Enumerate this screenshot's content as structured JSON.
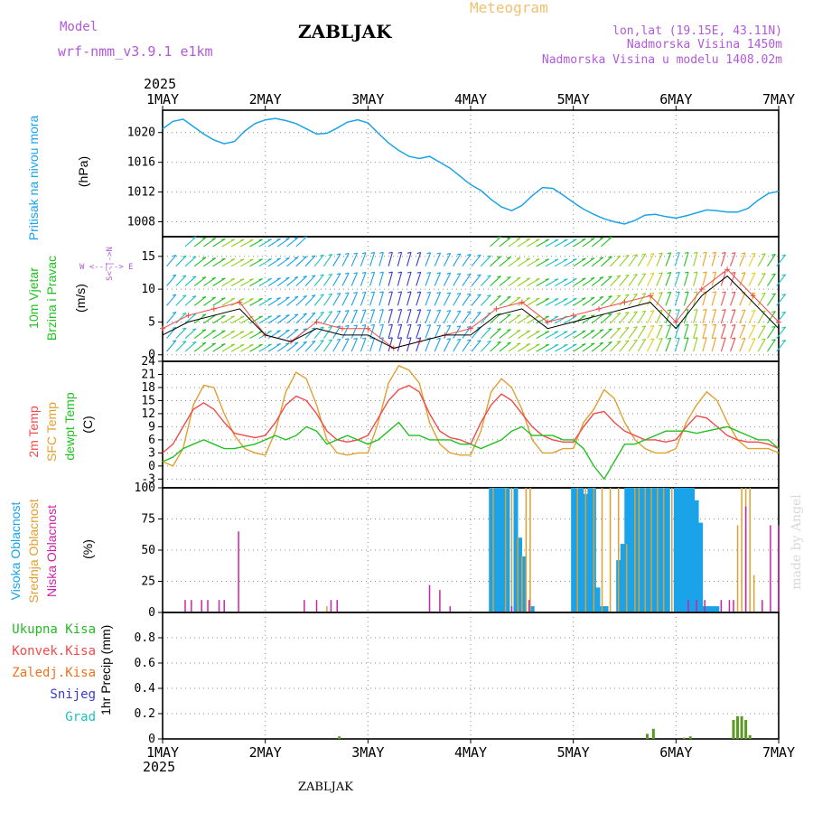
{
  "header": {
    "model_label": "Model",
    "model_name": "wrf-nmm_v3.9.1 e1km",
    "station": "ZABLJAK",
    "product": "Meteogram",
    "coords": "lon,lat (19.15E, 43.11N)",
    "elevation": "Nadmorska Visina 1450m",
    "model_elevation": "Nadmorska Visina u modelu 1408.02m",
    "watermark": "made by Angel",
    "footer_station": "ZABLJAK"
  },
  "axis": {
    "year": "2025",
    "dates": [
      "1MAY",
      "2MAY",
      "3MAY",
      "4MAY",
      "5MAY",
      "6MAY",
      "7MAY"
    ]
  },
  "colors": {
    "pressure": "#1aa3e8",
    "t2m": "#f24a4a",
    "sfc": "#e0a030",
    "dewpoint": "#22c022",
    "high_cloud": "#1aa3e8",
    "mid_cloud": "#e0a030",
    "low_cloud": "#cc22aa",
    "total_precip": "#22bb22",
    "convective": "#f24a4a",
    "frozen": "#f07020",
    "snow": "#3a3ad0",
    "hail": "#20c0c0",
    "wind_gust": "#f24a4a"
  },
  "chart_data": [
    {
      "type": "line",
      "panel": "pressure",
      "ylabel": "Pritisak na nivou mora",
      "unit": "(hPa)",
      "yticks": [
        1008,
        1012,
        1016,
        1020
      ],
      "ylim": [
        1006,
        1023
      ],
      "grid": true,
      "x": [
        0,
        0.1,
        0.2,
        0.3,
        0.4,
        0.5,
        0.6,
        0.7,
        0.8,
        0.9,
        1.0,
        1.1,
        1.2,
        1.3,
        1.4,
        1.5,
        1.6,
        1.7,
        1.8,
        1.9,
        2.0,
        2.1,
        2.2,
        2.3,
        2.4,
        2.5,
        2.6,
        2.7,
        2.8,
        2.9,
        3.0,
        3.1,
        3.2,
        3.3,
        3.4,
        3.5,
        3.6,
        3.7,
        3.8,
        3.9,
        4.0,
        4.1,
        4.2,
        4.3,
        4.4,
        4.5,
        4.6,
        4.7,
        4.8,
        4.9,
        5.0,
        5.1,
        5.2,
        5.3,
        5.4,
        5.5,
        5.6,
        5.7,
        5.8,
        5.9,
        6.0
      ],
      "series": [
        {
          "values": [
            1020.5,
            1021.5,
            1021.8,
            1020.8,
            1019.8,
            1019.0,
            1018.5,
            1018.8,
            1020.2,
            1021.2,
            1021.7,
            1021.9,
            1021.6,
            1021.2,
            1020.5,
            1019.8,
            1019.9,
            1020.6,
            1021.4,
            1021.7,
            1021.3,
            1019.9,
            1018.6,
            1017.6,
            1016.8,
            1016.5,
            1016.8,
            1016.0,
            1015.2,
            1014.1,
            1013.0,
            1012.2,
            1011.0,
            1010.0,
            1009.5,
            1010.2,
            1011.5,
            1012.6,
            1012.5,
            1011.6,
            1010.6,
            1009.7,
            1009.0,
            1008.4,
            1008.0,
            1007.7,
            1008.2,
            1008.9,
            1009.0,
            1008.7,
            1008.5,
            1008.8,
            1009.2,
            1009.6,
            1009.5,
            1009.3,
            1009.3,
            1009.8,
            1010.9,
            1011.8,
            1012.1
          ]
        }
      ]
    },
    {
      "type": "barb",
      "panel": "wind",
      "ylabel": "10m Vjetar Brzina i Pravac",
      "unit": "(m/s)",
      "legend_glyph": "W <-|-> E   N^ S",
      "yticks": [
        0,
        5,
        10,
        15
      ],
      "ylim": [
        -1,
        18
      ],
      "grid": true,
      "series": [
        {
          "name": "gust",
          "x": [
            0,
            0.25,
            0.5,
            0.75,
            1.0,
            1.25,
            1.5,
            1.75,
            2.0,
            2.25,
            2.5,
            2.75,
            3.0,
            3.25,
            3.5,
            3.75,
            4.0,
            4.25,
            4.5,
            4.75,
            5.0,
            5.25,
            5.5,
            5.75,
            6.0
          ],
          "values": [
            4,
            6,
            7,
            8,
            3,
            2,
            5,
            4,
            4,
            1,
            2,
            3,
            4,
            7,
            8,
            5,
            6,
            7,
            8,
            9,
            5,
            10,
            13,
            9,
            5
          ]
        },
        {
          "name": "speed",
          "x": [
            0,
            0.25,
            0.5,
            0.75,
            1.0,
            1.25,
            1.5,
            1.75,
            2.0,
            2.25,
            2.5,
            2.75,
            3.0,
            3.25,
            3.5,
            3.75,
            4.0,
            4.25,
            4.5,
            4.75,
            5.0,
            5.25,
            5.5,
            5.75,
            6.0
          ],
          "values": [
            3,
            5,
            6,
            7,
            3,
            2,
            4,
            3,
            3,
            1,
            2,
            3,
            3,
            6,
            7,
            4,
            5,
            6,
            7,
            8,
            4,
            9,
            12,
            8,
            4
          ]
        }
      ]
    },
    {
      "type": "line",
      "panel": "temperature",
      "ylabel": "2m Temp / SFC Temp / dewpt Temp",
      "unit": "(C)",
      "yticks": [
        -3,
        0,
        3,
        6,
        9,
        12,
        15,
        18,
        21,
        24
      ],
      "ylim": [
        -5,
        24
      ],
      "grid": true,
      "x": [
        0,
        0.1,
        0.2,
        0.3,
        0.4,
        0.5,
        0.6,
        0.7,
        0.8,
        0.9,
        1.0,
        1.1,
        1.2,
        1.3,
        1.4,
        1.5,
        1.6,
        1.7,
        1.8,
        1.9,
        2.0,
        2.1,
        2.2,
        2.3,
        2.4,
        2.5,
        2.6,
        2.7,
        2.8,
        2.9,
        3.0,
        3.1,
        3.2,
        3.3,
        3.4,
        3.5,
        3.6,
        3.7,
        3.8,
        3.9,
        4.0,
        4.1,
        4.2,
        4.3,
        4.4,
        4.5,
        4.6,
        4.7,
        4.8,
        4.9,
        5.0,
        5.1,
        5.2,
        5.3,
        5.4,
        5.5,
        5.6,
        5.7,
        5.8,
        5.9,
        6.0
      ],
      "series": [
        {
          "name": "2m Temp",
          "values": [
            3,
            5,
            9,
            13,
            14.5,
            13,
            10,
            7.5,
            7,
            6.5,
            7,
            10,
            14,
            16,
            15,
            12,
            8,
            6,
            5.5,
            6,
            7,
            11,
            15,
            17.5,
            18.5,
            17,
            12,
            8,
            6.5,
            6,
            5,
            10,
            14,
            16.5,
            15,
            12,
            9,
            7,
            6,
            5.5,
            5.5,
            9,
            12,
            12.5,
            10,
            8,
            7,
            6,
            6,
            5.5,
            6,
            9,
            11.5,
            11,
            9,
            7,
            6,
            5.5,
            5.5,
            5,
            4
          ]
        },
        {
          "name": "SFC Temp",
          "values": [
            1,
            0,
            4,
            14,
            18.5,
            18,
            12,
            7,
            4,
            3,
            2.5,
            8,
            17,
            21.5,
            20,
            14,
            6,
            3,
            2.5,
            3,
            3,
            10,
            19,
            23,
            22,
            19,
            10,
            5,
            3,
            2.5,
            2.5,
            8,
            17,
            20,
            18,
            13,
            6,
            3,
            3,
            4,
            4,
            10,
            13,
            17.5,
            15.5,
            10,
            6,
            4,
            3,
            3,
            4,
            10,
            14,
            17,
            15,
            10,
            6,
            4,
            4,
            4,
            3
          ]
        },
        {
          "name": "dewpt Temp",
          "values": [
            1,
            2,
            4,
            5,
            6,
            5,
            4,
            4,
            4.5,
            5,
            6,
            7,
            6,
            7,
            9,
            8,
            5,
            6,
            7,
            6,
            5,
            6,
            8,
            10,
            7,
            7,
            6,
            6,
            6,
            5,
            5,
            4,
            5,
            6,
            8,
            9,
            7,
            7,
            7,
            6,
            6,
            4,
            0,
            -3,
            1,
            5,
            5,
            6,
            7,
            8,
            8,
            8,
            7.5,
            8,
            8.5,
            9,
            8,
            7,
            6,
            6,
            4
          ]
        }
      ]
    },
    {
      "type": "bar",
      "panel": "clouds",
      "ylabel": "Visoka Oblacnost / Srednja Oblacnost / Niska Oblacnost",
      "unit": "(%)",
      "yticks": [
        0,
        25,
        50,
        75,
        100
      ],
      "ylim": [
        0,
        100
      ],
      "grid": true,
      "series": [
        {
          "name": "Visoka Oblacnost",
          "x": [
            3.2,
            3.24,
            3.28,
            3.32,
            3.36,
            3.44,
            3.48,
            3.52,
            3.6,
            4.0,
            4.04,
            4.08,
            4.12,
            4.16,
            4.2,
            4.24,
            4.28,
            4.32,
            4.44,
            4.48,
            4.52,
            4.56,
            4.6,
            4.64,
            4.68,
            4.72,
            4.76,
            4.8,
            4.84,
            4.88,
            4.92,
            5.0,
            5.04,
            5.08,
            5.12,
            5.16,
            5.2,
            5.24,
            5.28,
            5.32,
            5.36,
            5.4
          ],
          "values": [
            100,
            100,
            100,
            100,
            100,
            100,
            60,
            45,
            5,
            100,
            100,
            100,
            95,
            100,
            100,
            20,
            5,
            5,
            42,
            55,
            100,
            100,
            100,
            100,
            100,
            100,
            100,
            100,
            100,
            100,
            100,
            100,
            100,
            100,
            100,
            100,
            90,
            72,
            5,
            5,
            5,
            5
          ]
        },
        {
          "name": "Srednja Oblacnost",
          "x": [
            1.6,
            3.22,
            3.34,
            3.4,
            3.46,
            3.5,
            3.54,
            3.58,
            4.04,
            4.12,
            4.2,
            4.28,
            4.36,
            4.44,
            4.52,
            4.6,
            4.64,
            4.7,
            4.76,
            4.82,
            4.88,
            4.96,
            5.6,
            5.64,
            5.68,
            5.72,
            5.76
          ],
          "values": [
            5,
            100,
            100,
            100,
            60,
            45,
            100,
            100,
            100,
            100,
            100,
            100,
            100,
            100,
            55,
            100,
            100,
            100,
            100,
            100,
            100,
            100,
            70,
            100,
            100,
            100,
            30
          ]
        },
        {
          "name": "Niska Oblacnost",
          "x": [
            0.22,
            0.28,
            0.38,
            0.44,
            0.55,
            0.6,
            0.74,
            1.38,
            1.5,
            1.64,
            1.7,
            2.6,
            2.7,
            2.8,
            3.4,
            3.57,
            5.12,
            5.2,
            5.28,
            5.44,
            5.52,
            5.56,
            5.68,
            5.84,
            5.92,
            6.0
          ],
          "values": [
            10,
            10,
            10,
            10,
            10,
            10,
            65,
            10,
            10,
            10,
            10,
            22,
            18,
            5,
            5,
            10,
            10,
            10,
            10,
            10,
            10,
            10,
            85,
            10,
            70,
            70
          ]
        }
      ]
    },
    {
      "type": "bar",
      "panel": "precip",
      "ylabel": "1hr Precip",
      "unit": "(mm)",
      "legend": [
        "Ukupna Kisa",
        "Konvek.Kisa",
        "Zaledj.Kisa",
        "Snijeg",
        "Grad"
      ],
      "yticks": [
        0,
        0.2,
        0.4,
        0.6,
        0.8
      ],
      "ylim": [
        0,
        1.0
      ],
      "grid": true,
      "series": [
        {
          "name": "Ukupna Kisa",
          "x": [
            1.72,
            4.72,
            4.78,
            5.08,
            5.14,
            5.56,
            5.6,
            5.64,
            5.68,
            5.72
          ],
          "values": [
            0.02,
            0.04,
            0.08,
            0.01,
            0.02,
            0.15,
            0.18,
            0.18,
            0.15,
            0.03
          ]
        }
      ]
    }
  ]
}
